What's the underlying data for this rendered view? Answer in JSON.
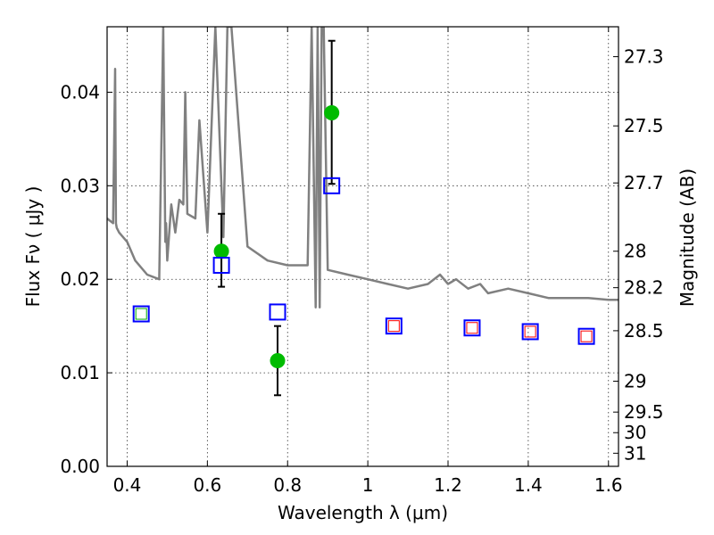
{
  "chart_data": {
    "type": "scatter",
    "xlabel": "Wavelength  λ (μm)",
    "ylabel": "Flux  Fν  ( μJy )",
    "ylabel_right": "Magnitude (AB)",
    "xlim": [
      0.35,
      1.625
    ],
    "ylim": [
      0.0,
      0.047
    ],
    "grid": true,
    "x_ticks": [
      0.4,
      0.6,
      0.8,
      1.0,
      1.2,
      1.4,
      1.6
    ],
    "x_tick_labels": [
      "0.4",
      "0.6",
      "0.8",
      "1",
      "1.2",
      "1.4",
      "1.6"
    ],
    "y_ticks": [
      0.0,
      0.01,
      0.02,
      0.03,
      0.04
    ],
    "y_tick_labels": [
      "0.00",
      "0.01",
      "0.02",
      "0.03",
      "0.04"
    ],
    "right_ticks": [
      {
        "label": "27.3",
        "flux": 0.0438
      },
      {
        "label": "27.5",
        "flux": 0.0364
      },
      {
        "label": "27.7",
        "flux": 0.0303
      },
      {
        "label": "28",
        "flux": 0.023
      },
      {
        "label": "28.2",
        "flux": 0.0191
      },
      {
        "label": "28.5",
        "flux": 0.0145
      },
      {
        "label": "29",
        "flux": 0.0091
      },
      {
        "label": "29.5",
        "flux": 0.0058
      },
      {
        "label": "30",
        "flux": 0.0036
      },
      {
        "label": "31",
        "flux": 0.0014
      }
    ],
    "series": [
      {
        "kind": "model_spectrum",
        "color": "#808080",
        "x": [
          0.35,
          0.365,
          0.37,
          0.372,
          0.374,
          0.38,
          0.4,
          0.42,
          0.45,
          0.48,
          0.49,
          0.495,
          0.497,
          0.5,
          0.51,
          0.52,
          0.53,
          0.54,
          0.545,
          0.55,
          0.57,
          0.58,
          0.6,
          0.62,
          0.64,
          0.65,
          0.66,
          0.7,
          0.75,
          0.8,
          0.85,
          0.86,
          0.87,
          0.875,
          0.88,
          0.885,
          0.89,
          0.9,
          0.95,
          1.0,
          1.05,
          1.1,
          1.15,
          1.18,
          1.2,
          1.22,
          1.25,
          1.28,
          1.3,
          1.35,
          1.4,
          1.45,
          1.5,
          1.55,
          1.6,
          1.625
        ],
        "y": [
          0.0265,
          0.026,
          0.0425,
          0.026,
          0.0255,
          0.025,
          0.024,
          0.022,
          0.0205,
          0.02,
          0.047,
          0.024,
          0.026,
          0.022,
          0.028,
          0.025,
          0.0285,
          0.028,
          0.04,
          0.027,
          0.0265,
          0.037,
          0.025,
          0.047,
          0.0245,
          0.047,
          0.047,
          0.0235,
          0.022,
          0.0215,
          0.0215,
          0.047,
          0.017,
          0.047,
          0.017,
          0.047,
          0.047,
          0.021,
          0.0205,
          0.02,
          0.0195,
          0.019,
          0.0195,
          0.0205,
          0.0195,
          0.02,
          0.019,
          0.0195,
          0.0185,
          0.019,
          0.0185,
          0.018,
          0.018,
          0.018,
          0.0178,
          0.0178
        ]
      },
      {
        "kind": "observed",
        "color": "#00bb00",
        "marker": "circle",
        "x": [
          0.635,
          0.775,
          0.91
        ],
        "y": [
          0.023,
          0.0113,
          0.0378
        ],
        "err_low": [
          0.0192,
          0.0076,
          0.0302
        ],
        "err_high": [
          0.027,
          0.015,
          0.0455
        ]
      },
      {
        "kind": "model_photometry",
        "color": "#0000ff",
        "marker": "square",
        "x": [
          0.435,
          0.635,
          0.775,
          0.91,
          1.065,
          1.26,
          1.405,
          1.545
        ],
        "y": [
          0.0163,
          0.0215,
          0.0165,
          0.03,
          0.015,
          0.0148,
          0.0144,
          0.0139
        ]
      },
      {
        "kind": "inner_markers",
        "marker": "small-square",
        "points": [
          {
            "x": 0.435,
            "y": 0.0163,
            "color": "#00aa00"
          },
          {
            "x": 1.065,
            "y": 0.015,
            "color": "#ff0000"
          },
          {
            "x": 1.26,
            "y": 0.0148,
            "color": "#ff0000"
          },
          {
            "x": 1.405,
            "y": 0.0144,
            "color": "#ff0000"
          },
          {
            "x": 1.545,
            "y": 0.0139,
            "color": "#ff0000"
          }
        ]
      }
    ]
  }
}
